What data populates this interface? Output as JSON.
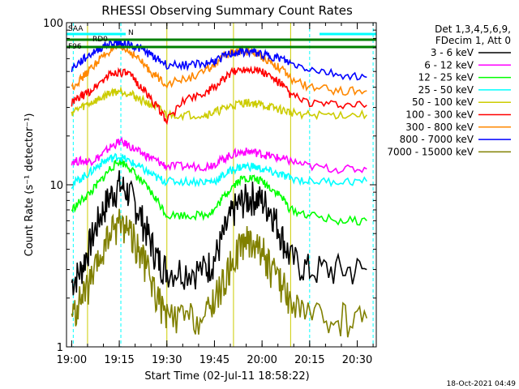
{
  "chart_data": {
    "type": "line",
    "title": "RHESSI Observing Summary Count Rates",
    "xlabel": "Start Time (02-Jul-11 18:58:22)",
    "ylabel": "Count Rate (s⁻¹ detector⁻¹)",
    "y_scale": "log",
    "ylim": [
      1,
      100
    ],
    "xlim": [
      "18:58:22",
      "20:36:00"
    ],
    "x_ticks": [
      "19:00",
      "19:15",
      "19:30",
      "19:45",
      "20:00",
      "20:15",
      "20:30"
    ],
    "y_ticks": [
      "1",
      "10",
      "100"
    ],
    "legend_header": [
      "Det 1,3,4,5,6,9,",
      "FDecim 1, Att 0"
    ],
    "legend_placement": "right",
    "footer_date": "18-Oct-2021 04:49",
    "flags": [
      {
        "label": "SAA",
        "color": "#ff00ff"
      },
      {
        "label": "N",
        "color": "#00ffff"
      },
      {
        "label": "RD0",
        "color": "#008000"
      },
      {
        "label": "F96",
        "color": "#008000"
      }
    ],
    "series": [
      {
        "name": "3 - 6 keV",
        "color": "#000000",
        "x": [
          "19:00",
          "19:03",
          "19:06",
          "19:09",
          "19:12",
          "19:15",
          "19:18",
          "19:21",
          "19:24",
          "19:27",
          "19:30",
          "19:36",
          "19:42",
          "19:45",
          "19:48",
          "19:51",
          "19:54",
          "19:57",
          "20:00",
          "20:03",
          "20:06",
          "20:09",
          "20:15",
          "20:24",
          "20:33"
        ],
        "y": [
          2.5,
          3,
          4.5,
          6.5,
          8.5,
          10,
          9,
          7,
          5,
          3.5,
          3,
          3,
          3,
          3.5,
          5,
          7,
          8,
          8.5,
          8,
          7,
          5,
          3.5,
          3,
          3,
          3
        ]
      },
      {
        "name": "6 - 12 keV",
        "color": "#ff00ff",
        "x": [
          "19:00",
          "19:03",
          "19:06",
          "19:09",
          "19:12",
          "19:15",
          "19:18",
          "19:21",
          "19:24",
          "19:27",
          "19:30",
          "19:36",
          "19:42",
          "19:45",
          "19:48",
          "19:51",
          "19:54",
          "19:57",
          "20:00",
          "20:03",
          "20:06",
          "20:09",
          "20:15",
          "20:24",
          "20:33"
        ],
        "y": [
          14,
          14,
          14,
          15,
          17,
          18.5,
          17.5,
          16,
          15,
          14,
          13,
          13,
          13,
          13.5,
          14.5,
          15.5,
          16,
          16,
          15.5,
          15,
          14.5,
          14,
          13,
          12.5,
          12.5
        ]
      },
      {
        "name": "12 - 25 keV",
        "color": "#00ff00",
        "x": [
          "19:00",
          "19:03",
          "19:06",
          "19:09",
          "19:12",
          "19:15",
          "19:18",
          "19:21",
          "19:24",
          "19:27",
          "19:30",
          "19:36",
          "19:42",
          "19:45",
          "19:48",
          "19:51",
          "19:54",
          "19:57",
          "20:00",
          "20:03",
          "20:06",
          "20:09",
          "20:15",
          "20:24",
          "20:33"
        ],
        "y": [
          7,
          8,
          9,
          10.5,
          12.5,
          14,
          13,
          11,
          9.5,
          8,
          6.5,
          6.5,
          6.5,
          7,
          8.5,
          10,
          11,
          11,
          10.5,
          9.5,
          8.5,
          7,
          6.5,
          6,
          6
        ]
      },
      {
        "name": "25 - 50 keV",
        "color": "#00ffff",
        "x": [
          "19:00",
          "19:03",
          "19:06",
          "19:09",
          "19:12",
          "19:15",
          "19:18",
          "19:21",
          "19:24",
          "19:27",
          "19:30",
          "19:36",
          "19:42",
          "19:45",
          "19:48",
          "19:51",
          "19:54",
          "19:57",
          "20:00",
          "20:03",
          "20:06",
          "20:09",
          "20:15",
          "20:24",
          "20:33"
        ],
        "y": [
          10,
          11,
          12,
          13.5,
          14.5,
          15,
          14,
          13,
          12,
          11,
          10.5,
          10.5,
          10.5,
          10.5,
          11.5,
          12.5,
          13,
          13,
          12.5,
          12,
          11.5,
          11,
          10.5,
          10.5,
          10.5
        ]
      },
      {
        "name": "50 - 100 keV",
        "color": "#cccc00",
        "x": [
          "19:00",
          "19:03",
          "19:06",
          "19:09",
          "19:12",
          "19:15",
          "19:18",
          "19:21",
          "19:24",
          "19:27",
          "19:30",
          "19:36",
          "19:42",
          "19:45",
          "19:48",
          "19:51",
          "19:54",
          "19:57",
          "20:00",
          "20:03",
          "20:06",
          "20:09",
          "20:15",
          "20:24",
          "20:33"
        ],
        "y": [
          28,
          30,
          32,
          34,
          37,
          38,
          37,
          34,
          32,
          30,
          27,
          27,
          27,
          28,
          29.5,
          31,
          32,
          32,
          31,
          30,
          29,
          28,
          27,
          27,
          27
        ]
      },
      {
        "name": "100 - 300 keV",
        "color": "#ff0000",
        "x": [
          "19:00",
          "19:03",
          "19:06",
          "19:09",
          "19:12",
          "19:15",
          "19:18",
          "19:21",
          "19:24",
          "19:27",
          "19:30",
          "19:36",
          "19:42",
          "19:45",
          "19:48",
          "19:51",
          "19:54",
          "19:57",
          "20:00",
          "20:03",
          "20:06",
          "20:09",
          "20:15",
          "20:24",
          "20:33"
        ],
        "y": [
          32,
          35,
          38,
          43,
          48,
          50,
          48,
          42,
          36,
          30,
          25,
          34,
          37,
          40,
          45,
          50,
          52,
          52,
          50,
          46,
          42,
          36,
          32,
          31,
          31
        ]
      },
      {
        "name": "300 - 800 keV",
        "color": "#ff8800",
        "x": [
          "19:00",
          "19:03",
          "19:06",
          "19:09",
          "19:12",
          "19:15",
          "19:18",
          "19:21",
          "19:24",
          "19:27",
          "19:30",
          "19:36",
          "19:42",
          "19:45",
          "19:48",
          "19:51",
          "19:54",
          "19:57",
          "20:00",
          "20:03",
          "20:06",
          "20:09",
          "20:15",
          "20:24",
          "20:33"
        ],
        "y": [
          40,
          45,
          52,
          60,
          67,
          70,
          67,
          60,
          52,
          46,
          42,
          45,
          50,
          55,
          62,
          66,
          67,
          66,
          62,
          57,
          52,
          45,
          40,
          38,
          38
        ]
      },
      {
        "name": "800 - 7000 keV",
        "color": "#0000ff",
        "x": [
          "19:00",
          "19:03",
          "19:06",
          "19:09",
          "19:12",
          "19:15",
          "19:18",
          "19:21",
          "19:24",
          "19:27",
          "19:30",
          "19:36",
          "19:42",
          "19:45",
          "19:48",
          "19:51",
          "19:54",
          "19:57",
          "20:00",
          "20:03",
          "20:06",
          "20:09",
          "20:15",
          "20:24",
          "20:33"
        ],
        "y": [
          52,
          58,
          64,
          70,
          74,
          75,
          74,
          70,
          65,
          60,
          55,
          55,
          56,
          58,
          62,
          65,
          66,
          66,
          64,
          62,
          60,
          56,
          52,
          48,
          46
        ]
      },
      {
        "name": "7000 - 15000 keV",
        "color": "#808000",
        "x": [
          "19:00",
          "19:03",
          "19:06",
          "19:09",
          "19:12",
          "19:15",
          "19:18",
          "19:21",
          "19:24",
          "19:27",
          "19:30",
          "19:36",
          "19:42",
          "19:45",
          "19:48",
          "19:51",
          "19:54",
          "19:57",
          "20:00",
          "20:03",
          "20:06",
          "20:09",
          "20:15",
          "20:24",
          "20:33"
        ],
        "y": [
          1.5,
          2,
          2.5,
          3.5,
          5,
          6,
          5.5,
          4,
          3,
          2,
          1.5,
          1.5,
          1.5,
          2,
          2.5,
          3.5,
          4.5,
          4.5,
          4,
          3,
          2.5,
          2,
          1.5,
          1.5,
          1.5
        ]
      }
    ]
  }
}
